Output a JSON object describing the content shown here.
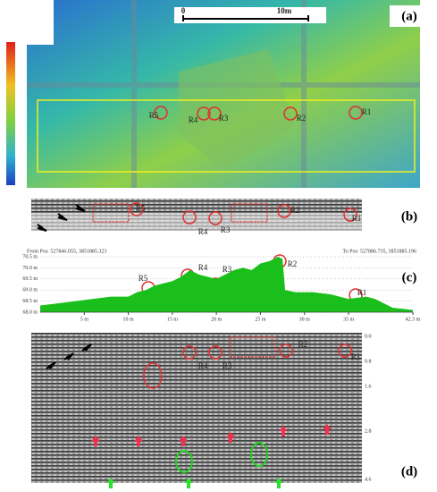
{
  "panel_a": {
    "label": "(a)",
    "scale_bar": [
      "0",
      "10m"
    ],
    "markers": [
      "R1",
      "R2",
      "R3",
      "R4",
      "R5"
    ]
  },
  "panel_b": {
    "label": "(b)",
    "markers": [
      "R1",
      "R2",
      "R3",
      "R4",
      "R5"
    ]
  },
  "panel_c": {
    "label": "(c)",
    "from": "From Pos: 527846.055, 3851885.323",
    "to": "To Pos: 527886.735, 3851885.196",
    "markers": [
      "R1",
      "R2",
      "R3",
      "R4",
      "R5"
    ]
  },
  "panel_d": {
    "label": "(d)",
    "markers": [
      "R1",
      "R2",
      "R3",
      "R4"
    ],
    "depth_ticks": [
      "0.0",
      "0.8",
      "1.6",
      "2.8",
      "4.6"
    ]
  },
  "chart_data": {
    "type": "area",
    "color": "#1bbf1b",
    "x": [
      0,
      2,
      4,
      6,
      8,
      10,
      11,
      12,
      13,
      15,
      16,
      17,
      18,
      19,
      20,
      21,
      22,
      23,
      24,
      25,
      26,
      27,
      27.5,
      27.8,
      29,
      31,
      33,
      35,
      37,
      38,
      40,
      42.3
    ],
    "values": [
      68.3,
      68.4,
      68.5,
      68.6,
      68.7,
      68.7,
      68.9,
      69.0,
      69.2,
      69.4,
      69.6,
      69.9,
      69.7,
      69.6,
      69.5,
      69.7,
      69.9,
      70.0,
      69.9,
      70.2,
      70.3,
      70.5,
      70.4,
      69.0,
      68.9,
      68.9,
      68.8,
      68.6,
      68.7,
      68.6,
      68.2,
      68.1
    ],
    "xlim": [
      0,
      42.3
    ],
    "ylim": [
      68.0,
      70.5
    ],
    "xticks": [
      {
        "value": 5,
        "label": "5 m"
      },
      {
        "value": 10,
        "label": "10 m"
      },
      {
        "value": 15,
        "label": "15 m"
      },
      {
        "value": 20,
        "label": "20 m"
      },
      {
        "value": 25,
        "label": "25 m"
      },
      {
        "value": 30,
        "label": "30 m"
      },
      {
        "value": 35,
        "label": "35 m"
      },
      {
        "value": 42.3,
        "label": "42.3 m"
      }
    ],
    "yticks": [
      {
        "value": 68.0,
        "label": "68.0 m"
      },
      {
        "value": 68.5,
        "label": "68.5 m"
      },
      {
        "value": 69.0,
        "label": "69.0 m"
      },
      {
        "value": 69.5,
        "label": "69.5 m"
      },
      {
        "value": 70.0,
        "label": "70.0 m"
      },
      {
        "value": 70.5,
        "label": "70.5 m"
      }
    ],
    "grid": true
  }
}
